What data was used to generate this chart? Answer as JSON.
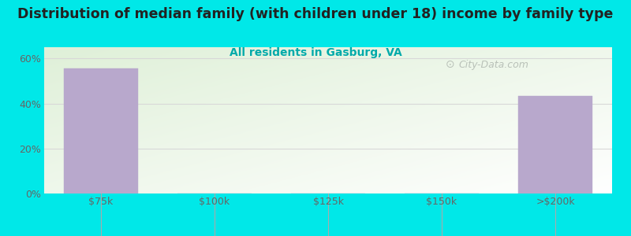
{
  "title": "Distribution of median family (with children under 18) income by family type",
  "subtitle": "All residents in Gasburg, VA",
  "categories": [
    "$75k",
    "$100k",
    "$125k",
    "$150k",
    ">$200k"
  ],
  "values": [
    55.6,
    0,
    0,
    0,
    43.4
  ],
  "bar_color": "#b8a8cc",
  "bar_edge_color": "#b8a8cc",
  "title_color": "#222222",
  "subtitle_color": "#00aaaa",
  "outer_bg_color": "#00e8e8",
  "plot_bg_green": "#dff0d8",
  "plot_bg_white": "#ffffff",
  "yticks": [
    0,
    20,
    40,
    60
  ],
  "ylim": [
    0,
    65
  ],
  "watermark_text": "City-Data.com",
  "watermark_color": "#b0b8b0",
  "grid_color": "#d8d8d8",
  "title_fontsize": 12.5,
  "subtitle_fontsize": 10,
  "tick_fontsize": 9,
  "tick_color": "#666666"
}
